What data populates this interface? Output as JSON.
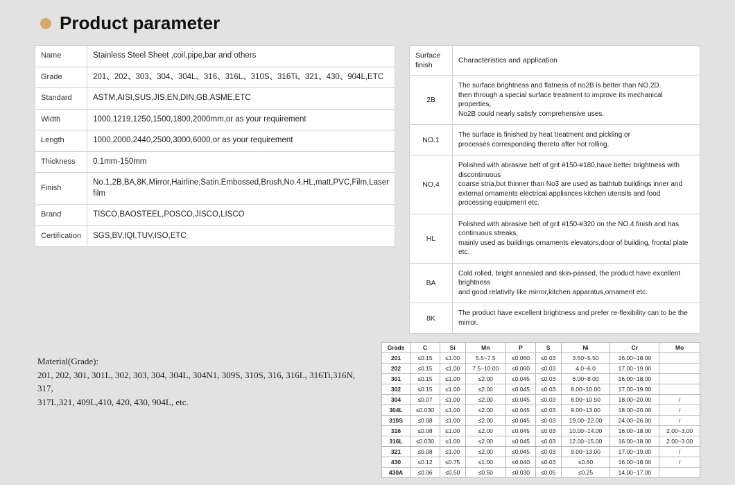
{
  "title": "Product parameter",
  "colors": {
    "bullet": "#d8a86a",
    "bg": "#e2e2e2",
    "border": "#d0d0d0"
  },
  "param_rows": [
    {
      "key": "Name",
      "val": "Stainless Steel Sheet ,coil,pipe,bar and others"
    },
    {
      "key": "Grade",
      "val": "201、202、303、304、304L、316、316L、310S、316Ti、321、430、904L,ETC"
    },
    {
      "key": "Standard",
      "val": "ASTM,AISI,SUS,JIS,EN,DIN,GB,ASME,ETC"
    },
    {
      "key": "Width",
      "val": "1000,1219,1250,1500,1800,2000mm,or as your requirement"
    },
    {
      "key": "Length",
      "val": "1000,2000,2440,2500,3000,6000,or as your requirement"
    },
    {
      "key": "Thickness",
      "val": "0.1mm-150mm"
    },
    {
      "key": "Finish",
      "val": "No.1,2B,BA,8K,Mirror,Hairline,Satin,Embossed,Brush,No.4,HL,matt,PVC,Film,Laser film"
    },
    {
      "key": "Brand",
      "val": "TISCO,BAOSTEEL,POSCO,JISCO,LISCO"
    },
    {
      "key": "Certification",
      "val": "SGS,BV,IQI,TUV,ISO,ETC"
    }
  ],
  "surface_header": {
    "col1": "Surface finish",
    "col2": "Characteristics and application"
  },
  "surface_rows": [
    {
      "key": "2B",
      "desc": "The surface brightness and flatness of no2B is better than NO.2D.\n then through a special surface treatment to improve its mechanical properties,\nNo2B could nearly satisfy comprehensive uses."
    },
    {
      "key": "NO.1",
      "desc": "The surface is finished by heat treatment and pickling or\nprocesses corresponding thereto after hot rolling."
    },
    {
      "key": "NO.4",
      "desc": "Polished with abrasive belt of grit #150-#180,have better brightness with discontinuous\ncoarse stria,but thinner than No3 are used as bathtub buildings inner and\nexternal ornaments electrical appliances kitchen utensils and food processing equipment etc."
    },
    {
      "key": "HL",
      "desc": "Polished with abrasive belt of grit #150-#320 on the NO.4 finish and has continuous streaks,\n mainly used as buildings ornaments elevators,door of building, frontal plate etc."
    },
    {
      "key": "BA",
      "desc": "Cold rolled, bright annealed and skin-passed, the product have excellent brightness\nand good relativity like mirror,kitchen apparatus,ornament etc."
    },
    {
      "key": "8K",
      "desc": "The product have excellent brightness and prefer re-flexibility can to be the mirror."
    }
  ],
  "material_note": {
    "head": "Material(Grade):",
    "body": "201, 202, 301, 301L, 302, 303, 304, 304L, 304N1, 309S, 310S, 316, 316L, 316Ti,316N, 317,\n317L,321, 409L,410, 420, 430, 904L, etc."
  },
  "comp": {
    "columns": [
      "Grade",
      "C",
      "Si",
      "Mn",
      "P",
      "S",
      "Ni",
      "Cr",
      "Mo"
    ],
    "rows": [
      [
        "201",
        "≤0.15",
        "≤1.00",
        "5.5~7.5",
        "≤0.060",
        "≤0.03",
        "3.50~5.50",
        "16.00~18.00",
        ""
      ],
      [
        "202",
        "≤0.15",
        "≤1.00",
        "7.5~10.00",
        "≤0.060",
        "≤0.03",
        "4.0~6.0",
        "17.00~19.00",
        ""
      ],
      [
        "301",
        "≤0.15",
        "≤1.00",
        "≤2.00",
        "≤0.045",
        "≤0.03",
        "6.00~8.00",
        "16.00~18.00",
        ""
      ],
      [
        "302",
        "≤0.15",
        "≤1.00",
        "≤2.00",
        "≤0.045",
        "≤0.03",
        "8.00~10.00",
        "17.00~19.00",
        ""
      ],
      [
        "304",
        "≤0.07",
        "≤1.00",
        "≤2.00",
        "≤0.045",
        "≤0.03",
        "8.00~10.50",
        "18.00~20.00",
        "/"
      ],
      [
        "304L",
        "≤0.030",
        "≤1.00",
        "≤2.00",
        "≤0.045",
        "≤0.03",
        "9.00~13.00",
        "18.00~20.00",
        "/"
      ],
      [
        "310S",
        "≤0.08",
        "≤1.00",
        "≤2.00",
        "≤0.045",
        "≤0.03",
        "19.00~22.00",
        "24.00~26.00",
        "/"
      ],
      [
        "316",
        "≤0.08",
        "≤1.00",
        "≤2.00",
        "≤0.045",
        "≤0.03",
        "10.00~14.00",
        "16.00~18.00",
        "2.00~3.00"
      ],
      [
        "316L",
        "≤0.030",
        "≤1.00",
        "≤2.00",
        "≤0.045",
        "≤0.03",
        "12.00~15.00",
        "16.00~18.00",
        "2.00~3.00"
      ],
      [
        "321",
        "≤0.08",
        "≤1.00",
        "≤2.00",
        "≤0.045",
        "≤0.03",
        "9.00~13.00",
        "17.00~19.00",
        "/"
      ],
      [
        "430",
        "≤0.12",
        "≤0.75",
        "≤1.00",
        "≤0.040",
        "≤0.03",
        "≤0.60",
        "16.00~18.00",
        "/"
      ],
      [
        "430A",
        "≤0.06",
        "≤0.50",
        "≤0.50",
        "≤0.030",
        "≤0.05",
        "≤0.25",
        "14.00~17.00",
        ""
      ]
    ]
  }
}
